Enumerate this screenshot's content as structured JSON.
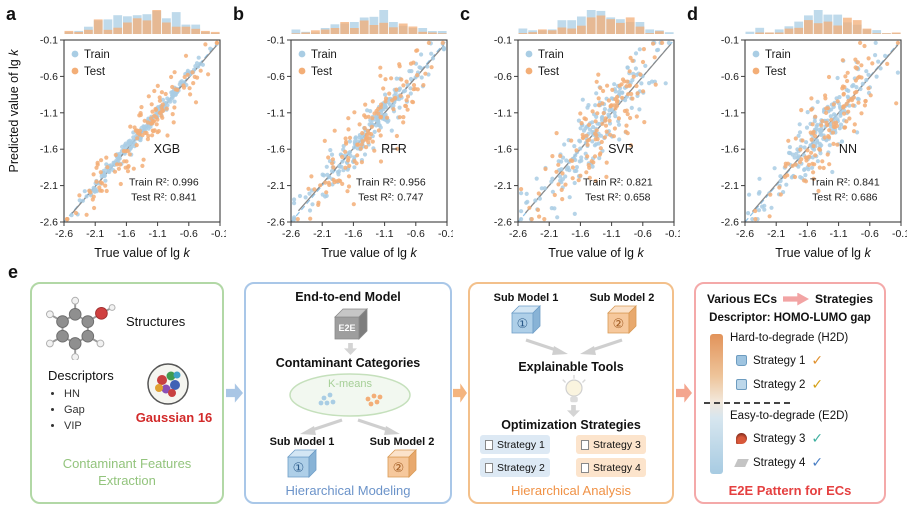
{
  "axes": {
    "xlabel_prefix": "True value of lg",
    "ylabel_prefix": "Predicted value of lg",
    "var": "k",
    "ticks": [
      "-2.6",
      "-2.1",
      "-1.6",
      "-1.1",
      "-0.6",
      "-0.1"
    ]
  },
  "legend": {
    "train": "Train",
    "test": "Test"
  },
  "panels": [
    {
      "label": "a",
      "model": "XGB",
      "train_r2_text": "Train R²: 0.996",
      "test_r2_text": "Test R²: 0.841"
    },
    {
      "label": "b",
      "model": "RFR",
      "train_r2_text": "Train R²: 0.956",
      "test_r2_text": "Test R²: 0.747"
    },
    {
      "label": "c",
      "model": "SVR",
      "train_r2_text": "Train R²: 0.821",
      "test_r2_text": "Test R²: 0.658"
    },
    {
      "label": "d",
      "model": "NN",
      "train_r2_text": "Train R²: 0.841",
      "test_r2_text": "Test R²: 0.686"
    }
  ],
  "chart_data": [
    {
      "type": "scatter",
      "title": "XGB",
      "xlabel": "True value of lg k",
      "ylabel": "Predicted value of lg k",
      "xlim": [
        -2.6,
        -0.1
      ],
      "ylim": [
        -2.6,
        -0.1
      ],
      "xticks": [
        -2.6,
        -2.1,
        -1.6,
        -1.1,
        -0.6,
        -0.1
      ],
      "yticks": [
        -2.6,
        -2.1,
        -1.6,
        -1.1,
        -0.6,
        -0.1
      ],
      "series": [
        {
          "name": "Train",
          "color": "#a9cde4",
          "n": 190,
          "r2": 0.996
        },
        {
          "name": "Test",
          "color": "#f3ae77",
          "n": 130,
          "r2": 0.841
        }
      ],
      "identity_line": true,
      "fit_line": true,
      "marginal_top_histogram": true,
      "annotations": [
        "Train R²: 0.996",
        "Test R²: 0.841"
      ]
    },
    {
      "type": "scatter",
      "title": "RFR",
      "xlabel": "True value of lg k",
      "ylabel": "Predicted value of lg k",
      "xlim": [
        -2.6,
        -0.1
      ],
      "ylim": [
        -2.6,
        -0.1
      ],
      "xticks": [
        -2.6,
        -2.1,
        -1.6,
        -1.1,
        -0.6,
        -0.1
      ],
      "yticks": [
        -2.6,
        -2.1,
        -1.6,
        -1.1,
        -0.6,
        -0.1
      ],
      "series": [
        {
          "name": "Train",
          "color": "#a9cde4",
          "n": 190,
          "r2": 0.956
        },
        {
          "name": "Test",
          "color": "#f3ae77",
          "n": 130,
          "r2": 0.747
        }
      ],
      "identity_line": true,
      "fit_line": true,
      "marginal_top_histogram": true,
      "annotations": [
        "Train R²: 0.956",
        "Test R²: 0.747"
      ]
    },
    {
      "type": "scatter",
      "title": "SVR",
      "xlabel": "True value of lg k",
      "ylabel": "Predicted value of lg k",
      "xlim": [
        -2.6,
        -0.1
      ],
      "ylim": [
        -2.6,
        -0.1
      ],
      "xticks": [
        -2.6,
        -2.1,
        -1.6,
        -1.1,
        -0.6,
        -0.1
      ],
      "yticks": [
        -2.6,
        -2.1,
        -1.6,
        -1.1,
        -0.6,
        -0.1
      ],
      "series": [
        {
          "name": "Train",
          "color": "#a9cde4",
          "n": 190,
          "r2": 0.821
        },
        {
          "name": "Test",
          "color": "#f3ae77",
          "n": 130,
          "r2": 0.658
        }
      ],
      "identity_line": true,
      "fit_line": true,
      "marginal_top_histogram": true,
      "annotations": [
        "Train R²: 0.821",
        "Test R²: 0.658"
      ]
    },
    {
      "type": "scatter",
      "title": "NN",
      "xlabel": "True value of lg k",
      "ylabel": "Predicted value of lg k",
      "xlim": [
        -2.6,
        -0.1
      ],
      "ylim": [
        -2.6,
        -0.1
      ],
      "xticks": [
        -2.6,
        -2.1,
        -1.6,
        -1.1,
        -0.6,
        -0.1
      ],
      "yticks": [
        -2.6,
        -2.1,
        -1.6,
        -1.1,
        -0.6,
        -0.1
      ],
      "series": [
        {
          "name": "Train",
          "color": "#a9cde4",
          "n": 190,
          "r2": 0.841
        },
        {
          "name": "Test",
          "color": "#f3ae77",
          "n": 130,
          "r2": 0.686
        }
      ],
      "identity_line": true,
      "fit_line": true,
      "marginal_top_histogram": true,
      "annotations": [
        "Train R²: 0.841",
        "Test R²: 0.686"
      ]
    }
  ],
  "workflow": {
    "label": "e",
    "feature_box": {
      "structures_label": "Structures",
      "descriptors_label": "Descriptors",
      "descriptor_items": [
        "HN",
        "Gap",
        "VIP"
      ],
      "software_label": "Gaussian 16",
      "caption": "Contaminant Features Extraction"
    },
    "modeling_box": {
      "heading": "End-to-end Model",
      "e2e_cube_label": "E2E",
      "categories_label": "Contaminant Categories",
      "kmeans_label": "K-means",
      "sub_model_1": "Sub Model 1",
      "sub_model_2": "Sub Model 2",
      "cube_1_num": "①",
      "cube_2_num": "②",
      "caption": "Hierarchical Modeling"
    },
    "analysis_box": {
      "sub_model_1": "Sub Model 1",
      "sub_model_2": "Sub Model 2",
      "cube_1_num": "①",
      "cube_2_num": "②",
      "tools_label": "Explainable Tools",
      "optimization_label": "Optimization Strategies",
      "strategies": [
        "Strategy 1",
        "Strategy 2",
        "Strategy 3",
        "Strategy 4"
      ],
      "caption": "Hierarchical Analysis"
    },
    "pattern_box": {
      "various_ecs": "Various ECs",
      "strategies_label": "Strategies",
      "descriptor_line": "Descriptor: HOMO-LUMO gap",
      "hard_label": "Hard-to-degrade (H2D)",
      "easy_label": "Easy-to-degrade (E2D)",
      "hard_strategies": [
        {
          "label": "Strategy 1",
          "check": "✓"
        },
        {
          "label": "Strategy 2",
          "check": "✓"
        }
      ],
      "easy_strategies": [
        {
          "label": "Strategy 3",
          "check": "✓"
        },
        {
          "label": "Strategy 4",
          "check": "✓"
        }
      ],
      "caption": "E2E Pattern for ECs"
    }
  },
  "colors": {
    "train_point": "#a9cde4",
    "test_point": "#f3ae77",
    "identity_line": "#8fc3e8",
    "fit_line": "#8a8a8a",
    "feature_box_border": "#b2d8a6",
    "feature_caption": "#93c47d",
    "modeling_box_border": "#a9c7e8",
    "modeling_caption": "#6b93c9",
    "analysis_box_border": "#f3c08b",
    "analysis_caption": "#f09246",
    "pattern_box_border": "#f4a9a9",
    "pattern_caption": "#e54040",
    "kmeans_green": "#a6cf97",
    "arrow_1": "#a9c6e5",
    "arrow_2": "#f4b47e",
    "arrow_3": "#f4a58e",
    "check_strategy_1": "#e0912f",
    "check_strategy_2": "#d4a017",
    "check_strategy_3": "#3fb0a0",
    "check_strategy_4": "#4a7fc4",
    "gradient_bar_top": "#e2935a",
    "gradient_bar_bottom": "#a7cbe2"
  }
}
